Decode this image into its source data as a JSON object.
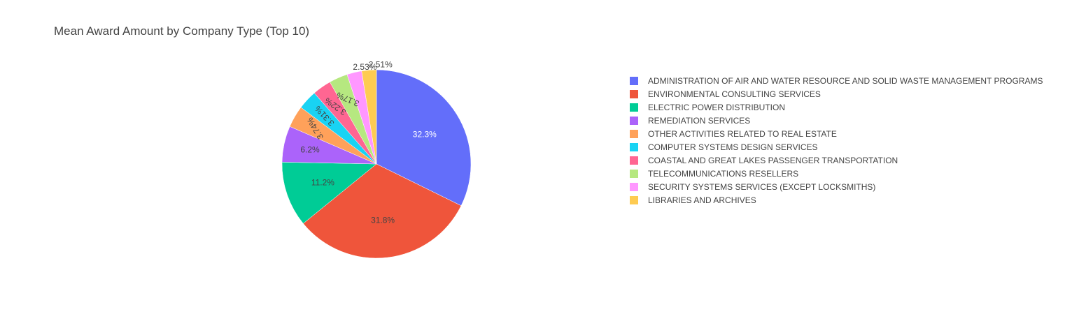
{
  "chart_data": {
    "type": "pie",
    "title": "Mean Award Amount by Company Type (Top 10)",
    "legend_position": "right",
    "slices": [
      {
        "label": "ADMINISTRATION OF AIR AND WATER RESOURCE AND SOLID WASTE MANAGEMENT PROGRAMS",
        "value": 32.3,
        "text": "32.3%",
        "color": "#636efa"
      },
      {
        "label": "ENVIRONMENTAL CONSULTING SERVICES",
        "value": 31.8,
        "text": "31.8%",
        "color": "#EF553B"
      },
      {
        "label": "ELECTRIC POWER DISTRIBUTION",
        "value": 11.2,
        "text": "11.2%",
        "color": "#00cc96"
      },
      {
        "label": "REMEDIATION SERVICES",
        "value": 6.2,
        "text": "6.2%",
        "color": "#ab63fa"
      },
      {
        "label": "OTHER ACTIVITIES RELATED TO REAL ESTATE",
        "value": 3.74,
        "text": "3.74%",
        "color": "#FFA15A"
      },
      {
        "label": "COMPUTER SYSTEMS DESIGN SERVICES",
        "value": 3.31,
        "text": "3.31%",
        "color": "#19d3f3"
      },
      {
        "label": "COASTAL AND GREAT LAKES PASSENGER TRANSPORTATION",
        "value": 3.22,
        "text": "3.22%",
        "color": "#FF6692"
      },
      {
        "label": "TELECOMMUNICATIONS RESELLERS",
        "value": 3.17,
        "text": "3.17%",
        "color": "#B6E880"
      },
      {
        "label": "SECURITY SYSTEMS SERVICES (EXCEPT LOCKSMITHS)",
        "value": 2.53,
        "text": "2.53%",
        "color": "#FF97FF"
      },
      {
        "label": "LIBRARIES AND ARCHIVES",
        "value": 2.51,
        "text": "2.51%",
        "color": "#FECB52"
      }
    ]
  }
}
